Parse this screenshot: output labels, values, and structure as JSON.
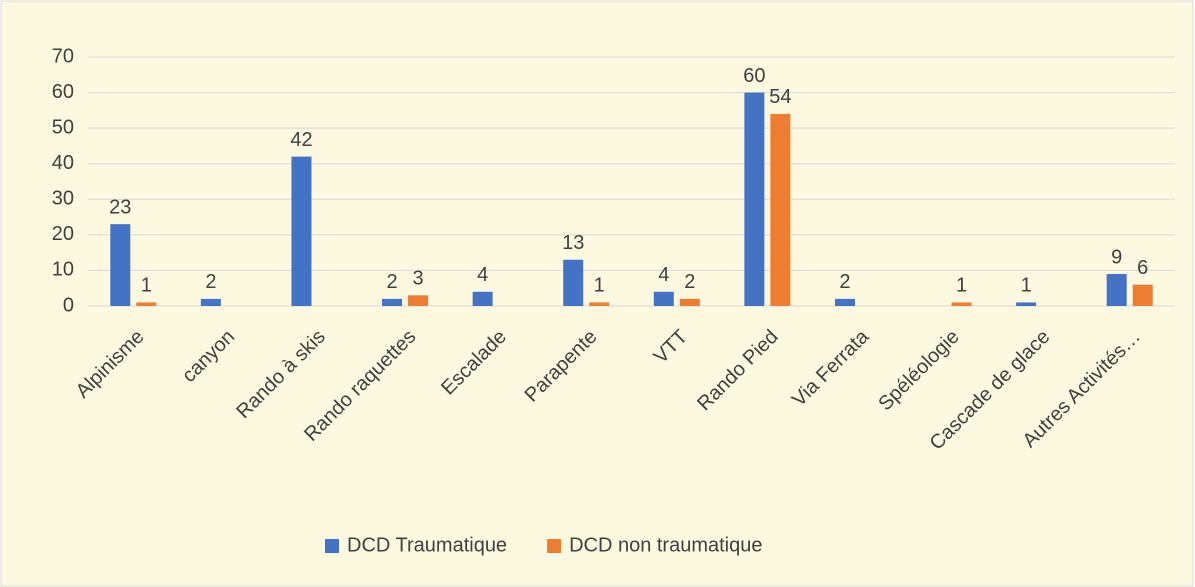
{
  "chart_data": {
    "type": "bar",
    "categories": [
      "Alpinisme",
      "canyon",
      "Rando à skis",
      "Rando raquettes",
      "Escalade",
      "Parapente",
      "VTT",
      "Rando Pied",
      "Via Ferrata",
      "Spéléologie",
      "Cascade de glace",
      "Autres Activités…"
    ],
    "series": [
      {
        "name": "DCD Traumatique",
        "color": "#4472c4",
        "values": [
          23,
          2,
          42,
          2,
          4,
          13,
          4,
          60,
          2,
          null,
          1,
          9
        ]
      },
      {
        "name": "DCD non traumatique",
        "color": "#ed7d31",
        "values": [
          1,
          null,
          null,
          3,
          null,
          1,
          2,
          54,
          null,
          1,
          null,
          6
        ]
      }
    ],
    "ylim": [
      0,
      70
    ],
    "yticks": [
      0,
      10,
      20,
      30,
      40,
      50,
      60,
      70
    ],
    "grid": true,
    "legend": "bottom"
  }
}
